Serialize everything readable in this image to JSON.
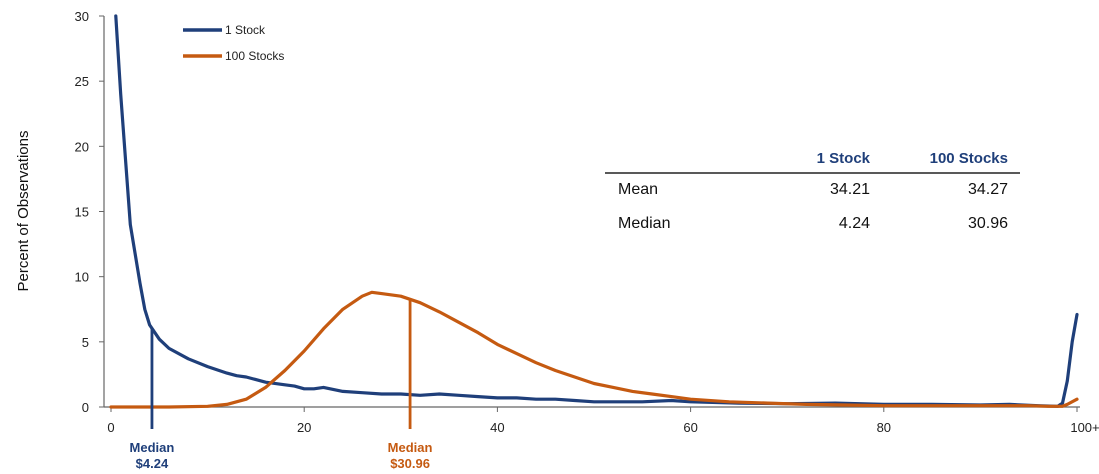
{
  "chart_data": {
    "type": "line",
    "title": "",
    "xlabel": "",
    "ylabel": "Percent of Observations",
    "xlim": [
      0,
      100
    ],
    "ylim": [
      0,
      30
    ],
    "x_ticks": [
      "0",
      "20",
      "40",
      "60",
      "80",
      "100+"
    ],
    "x_tick_values": [
      0,
      20,
      40,
      60,
      80,
      100
    ],
    "y_ticks": [
      0,
      5,
      10,
      15,
      20,
      25,
      30
    ],
    "grid": false,
    "legend_position": "top-left",
    "series": [
      {
        "name": "1 Stock",
        "color": "#1f3f7a",
        "points": [
          [
            0.5,
            30
          ],
          [
            1,
            24
          ],
          [
            2,
            14
          ],
          [
            3,
            9.5
          ],
          [
            3.5,
            7.5
          ],
          [
            4,
            6.3
          ],
          [
            5,
            5.2
          ],
          [
            6,
            4.5
          ],
          [
            8,
            3.7
          ],
          [
            10,
            3.1
          ],
          [
            12,
            2.6
          ],
          [
            13,
            2.4
          ],
          [
            14,
            2.3
          ],
          [
            15,
            2.1
          ],
          [
            16,
            1.9
          ],
          [
            18,
            1.7
          ],
          [
            19,
            1.6
          ],
          [
            20,
            1.4
          ],
          [
            21,
            1.4
          ],
          [
            22,
            1.5
          ],
          [
            24,
            1.2
          ],
          [
            26,
            1.1
          ],
          [
            28,
            1.0
          ],
          [
            30,
            1.0
          ],
          [
            32,
            0.9
          ],
          [
            34,
            1.0
          ],
          [
            36,
            0.9
          ],
          [
            38,
            0.8
          ],
          [
            40,
            0.7
          ],
          [
            42,
            0.7
          ],
          [
            44,
            0.6
          ],
          [
            46,
            0.6
          ],
          [
            48,
            0.5
          ],
          [
            50,
            0.4
          ],
          [
            52,
            0.4
          ],
          [
            55,
            0.4
          ],
          [
            58,
            0.5
          ],
          [
            60,
            0.4
          ],
          [
            65,
            0.3
          ],
          [
            70,
            0.25
          ],
          [
            75,
            0.3
          ],
          [
            80,
            0.2
          ],
          [
            85,
            0.2
          ],
          [
            90,
            0.15
          ],
          [
            93,
            0.2
          ],
          [
            96,
            0.1
          ],
          [
            98,
            0.05
          ],
          [
            98.5,
            0.3
          ],
          [
            99,
            2
          ],
          [
            99.5,
            5
          ],
          [
            100,
            7.1
          ]
        ]
      },
      {
        "name": "100 Stocks",
        "color": "#c55a11",
        "points": [
          [
            0,
            0
          ],
          [
            6,
            0
          ],
          [
            10,
            0.05
          ],
          [
            12,
            0.2
          ],
          [
            14,
            0.6
          ],
          [
            16,
            1.5
          ],
          [
            18,
            2.8
          ],
          [
            20,
            4.3
          ],
          [
            22,
            6.0
          ],
          [
            24,
            7.5
          ],
          [
            26,
            8.5
          ],
          [
            27,
            8.8
          ],
          [
            28,
            8.7
          ],
          [
            30,
            8.5
          ],
          [
            32,
            8.0
          ],
          [
            34,
            7.3
          ],
          [
            36,
            6.5
          ],
          [
            38,
            5.7
          ],
          [
            40,
            4.8
          ],
          [
            42,
            4.1
          ],
          [
            44,
            3.4
          ],
          [
            46,
            2.8
          ],
          [
            48,
            2.3
          ],
          [
            50,
            1.8
          ],
          [
            52,
            1.5
          ],
          [
            54,
            1.2
          ],
          [
            56,
            1.0
          ],
          [
            58,
            0.8
          ],
          [
            60,
            0.6
          ],
          [
            64,
            0.4
          ],
          [
            68,
            0.3
          ],
          [
            72,
            0.2
          ],
          [
            76,
            0.15
          ],
          [
            80,
            0.1
          ],
          [
            85,
            0.1
          ],
          [
            90,
            0.1
          ],
          [
            95,
            0.1
          ],
          [
            97,
            0.05
          ],
          [
            98.5,
            0.05
          ],
          [
            99,
            0.2
          ],
          [
            100,
            0.6
          ]
        ]
      }
    ],
    "medians": [
      {
        "series": "1 Stock",
        "x": 4.24,
        "label_line1": "Median",
        "label_line2": "$4.24",
        "color": "#1f3f7a"
      },
      {
        "series": "100 Stocks",
        "x": 30.96,
        "label_line1": "Median",
        "label_line2": "$30.96",
        "color": "#c55a11"
      }
    ],
    "summary_table": {
      "columns": [
        "",
        "1 Stock",
        "100 Stocks"
      ],
      "rows": [
        {
          "label": "Mean",
          "values": [
            "34.21",
            "34.27"
          ]
        },
        {
          "label": "Median",
          "values": [
            "4.24",
            "30.96"
          ]
        }
      ]
    }
  }
}
